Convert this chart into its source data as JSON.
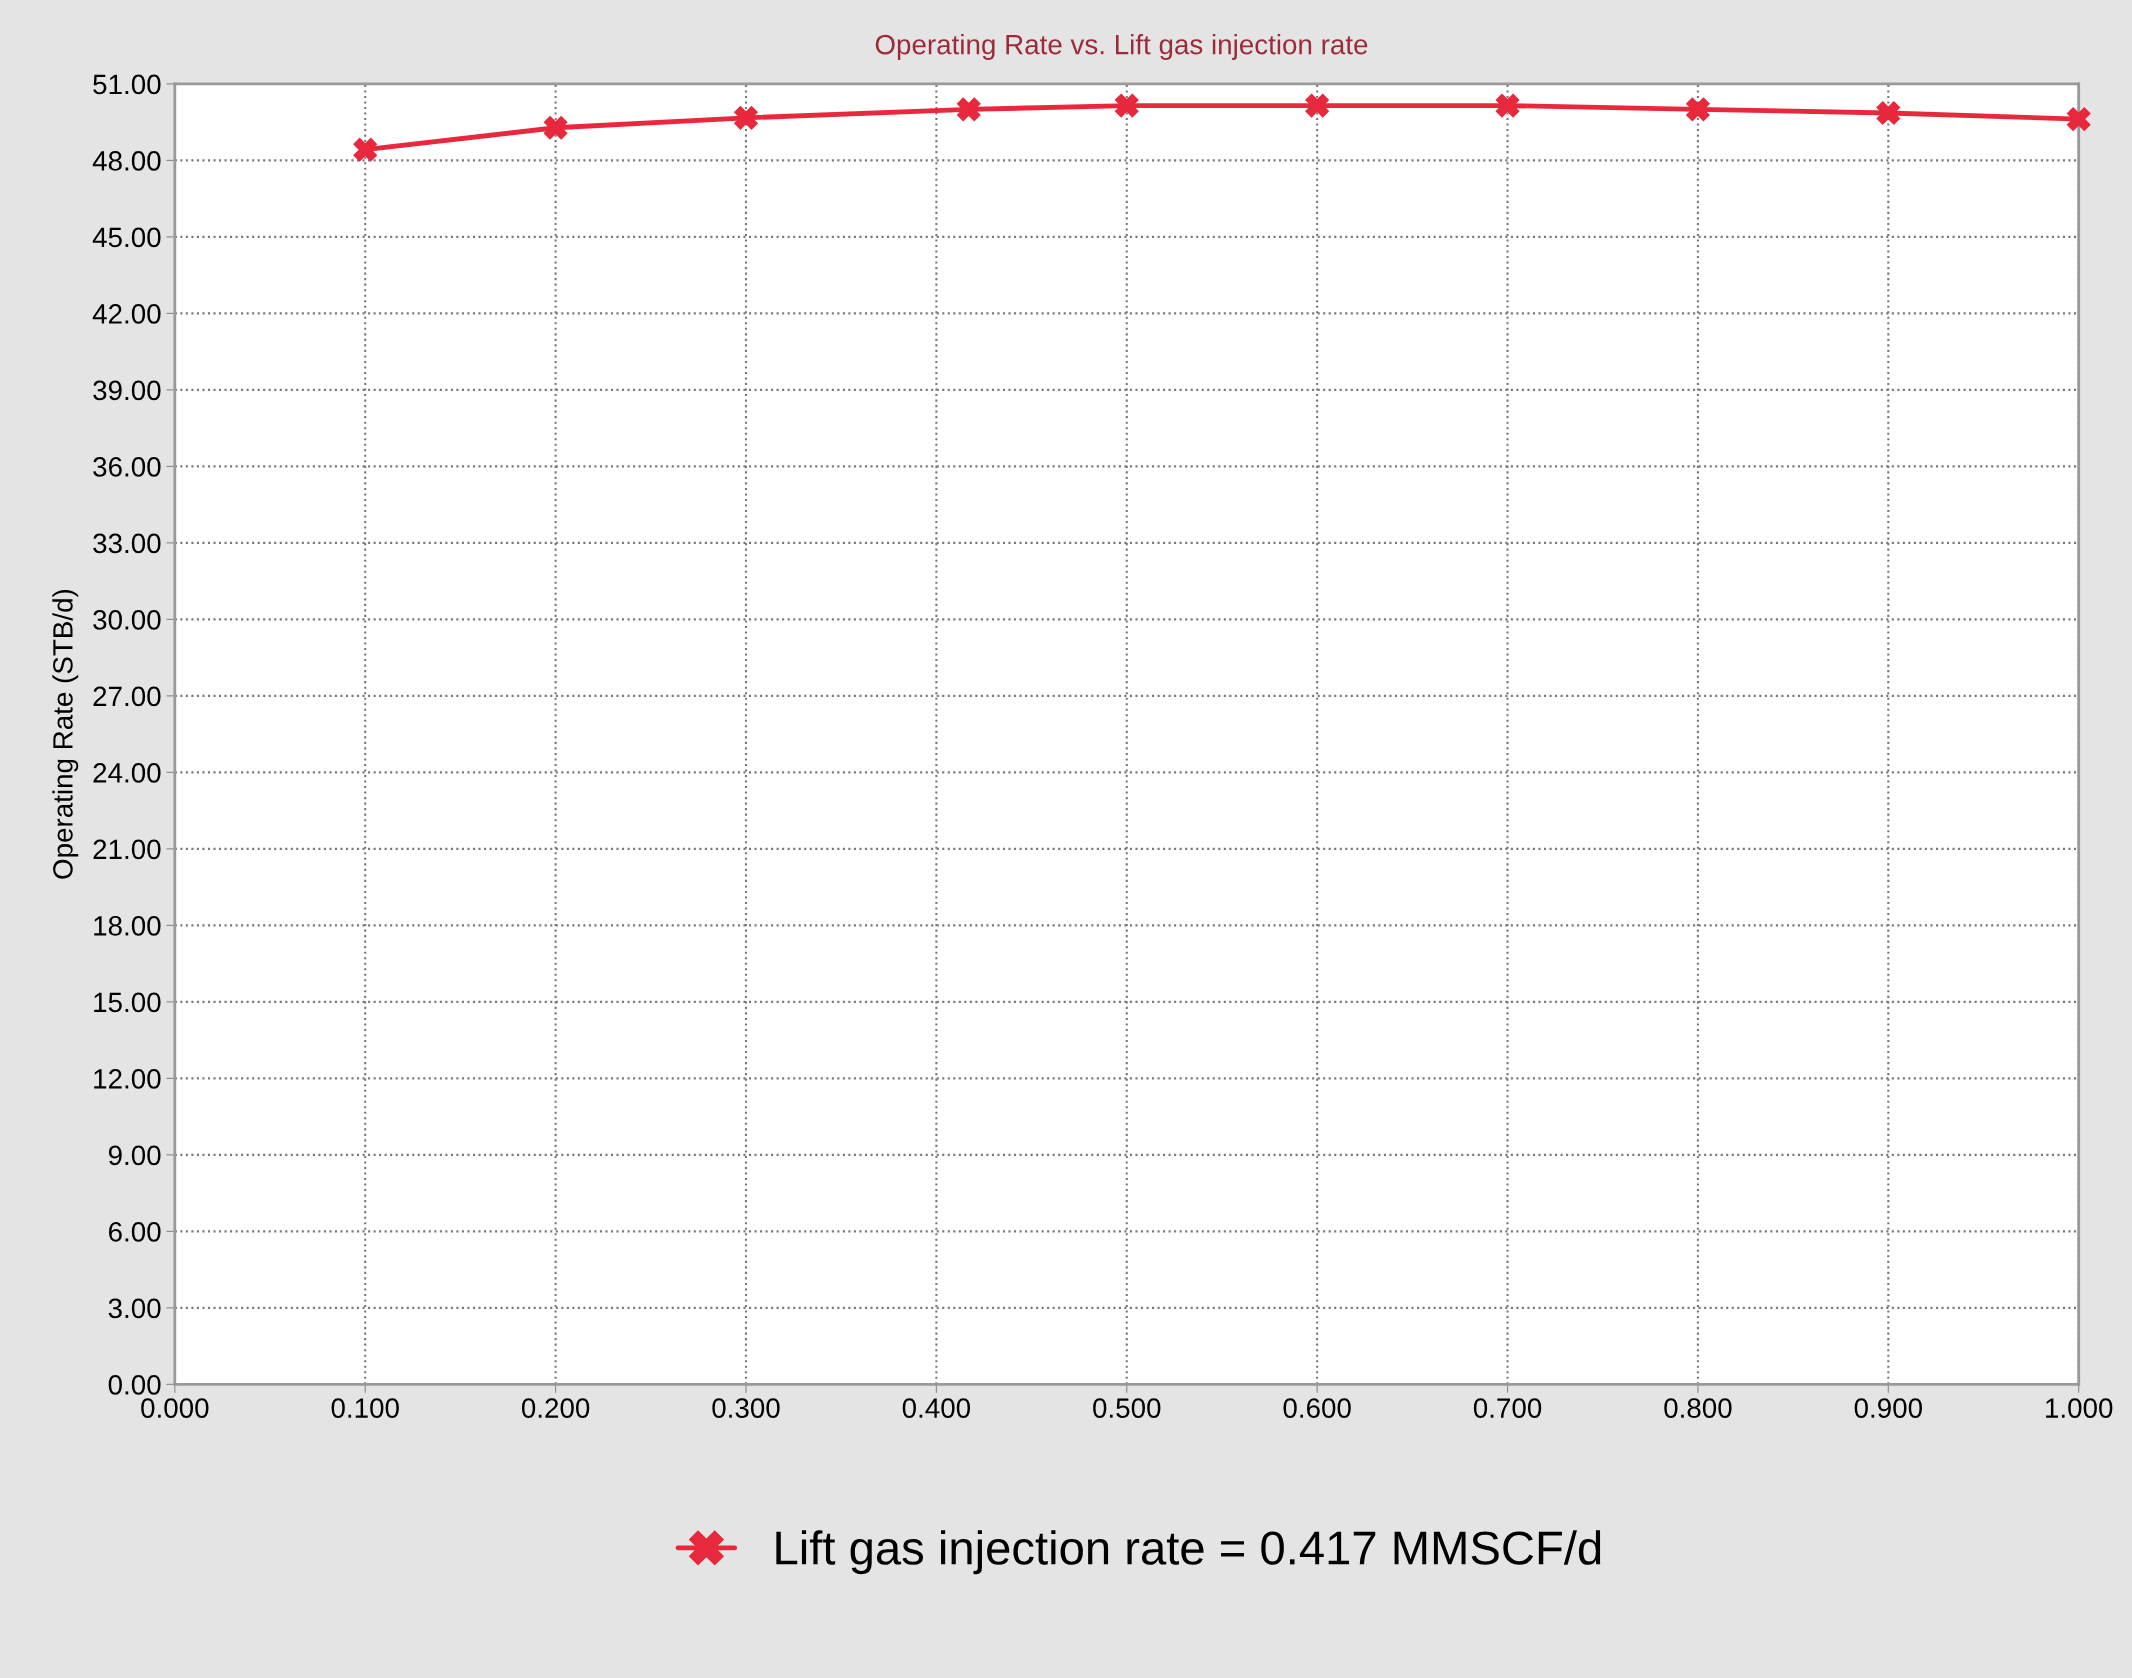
{
  "chart_data": {
    "type": "line",
    "title": "Operating Rate vs. Lift gas injection rate",
    "ylabel": "Operating Rate (STB/d)",
    "x": [
      0.1,
      0.2,
      0.3,
      0.417,
      0.5,
      0.6,
      0.7,
      0.8,
      0.9,
      1.0
    ],
    "series": [
      {
        "name": "Lift gas injection rate = 0.417 MMSCF/d",
        "color": "#e8283c",
        "values": [
          48.42,
          49.28,
          49.67,
          50.0,
          50.15,
          50.15,
          50.15,
          50.0,
          49.86,
          49.62
        ]
      }
    ],
    "xlim": [
      0,
      1
    ],
    "xticks": [
      {
        "value": 0,
        "label": "0.000"
      },
      {
        "value": 0.1,
        "label": "0.100"
      },
      {
        "value": 0.2,
        "label": "0.200"
      },
      {
        "value": 0.3,
        "label": "0.300"
      },
      {
        "value": 0.4,
        "label": "0.400"
      },
      {
        "value": 0.5,
        "label": "0.500"
      },
      {
        "value": 0.6,
        "label": "0.600"
      },
      {
        "value": 0.7,
        "label": "0.700"
      },
      {
        "value": 0.8,
        "label": "0.800"
      },
      {
        "value": 0.9,
        "label": "0.900"
      },
      {
        "value": 1,
        "label": "1.000"
      }
    ],
    "ylim": [
      0,
      51
    ],
    "yticks": [
      {
        "value": 0,
        "label": "0.00"
      },
      {
        "value": 3,
        "label": "3.00"
      },
      {
        "value": 6,
        "label": "6.00"
      },
      {
        "value": 9,
        "label": "9.00"
      },
      {
        "value": 12,
        "label": "12.00"
      },
      {
        "value": 15,
        "label": "15.00"
      },
      {
        "value": 18,
        "label": "18.00"
      },
      {
        "value": 21,
        "label": "21.00"
      },
      {
        "value": 24,
        "label": "24.00"
      },
      {
        "value": 27,
        "label": "27.00"
      },
      {
        "value": 30,
        "label": "30.00"
      },
      {
        "value": 33,
        "label": "33.00"
      },
      {
        "value": 36,
        "label": "36.00"
      },
      {
        "value": 39,
        "label": "39.00"
      },
      {
        "value": 42,
        "label": "42.00"
      },
      {
        "value": 45,
        "label": "45.00"
      },
      {
        "value": 48,
        "label": "48.00"
      },
      {
        "value": 51,
        "label": "51.00"
      }
    ],
    "grid": true,
    "legend": "bottom",
    "marker": "cross",
    "line_style": "solid"
  }
}
